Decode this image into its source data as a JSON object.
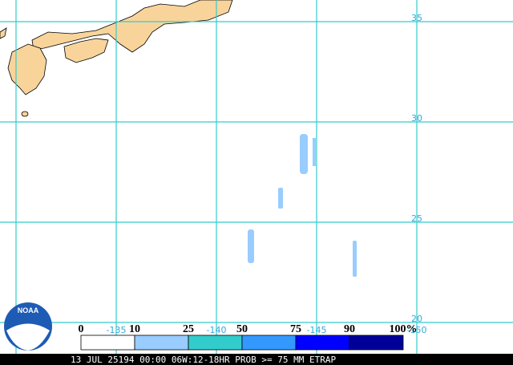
{
  "map": {
    "latitude_labels": [
      "35",
      "30",
      "25",
      "20"
    ],
    "longitude_labels": [
      "-135",
      "-140",
      "-145",
      "-150"
    ]
  },
  "legend": {
    "labels": [
      "0",
      "10",
      "25",
      "50",
      "75",
      "90",
      "100%"
    ]
  },
  "logo": {
    "text": "NOAA"
  },
  "footer": {
    "text": "13 JUL 25194 00:00 06W:12-18HR PROB >= 75 MM ETRAP"
  }
}
